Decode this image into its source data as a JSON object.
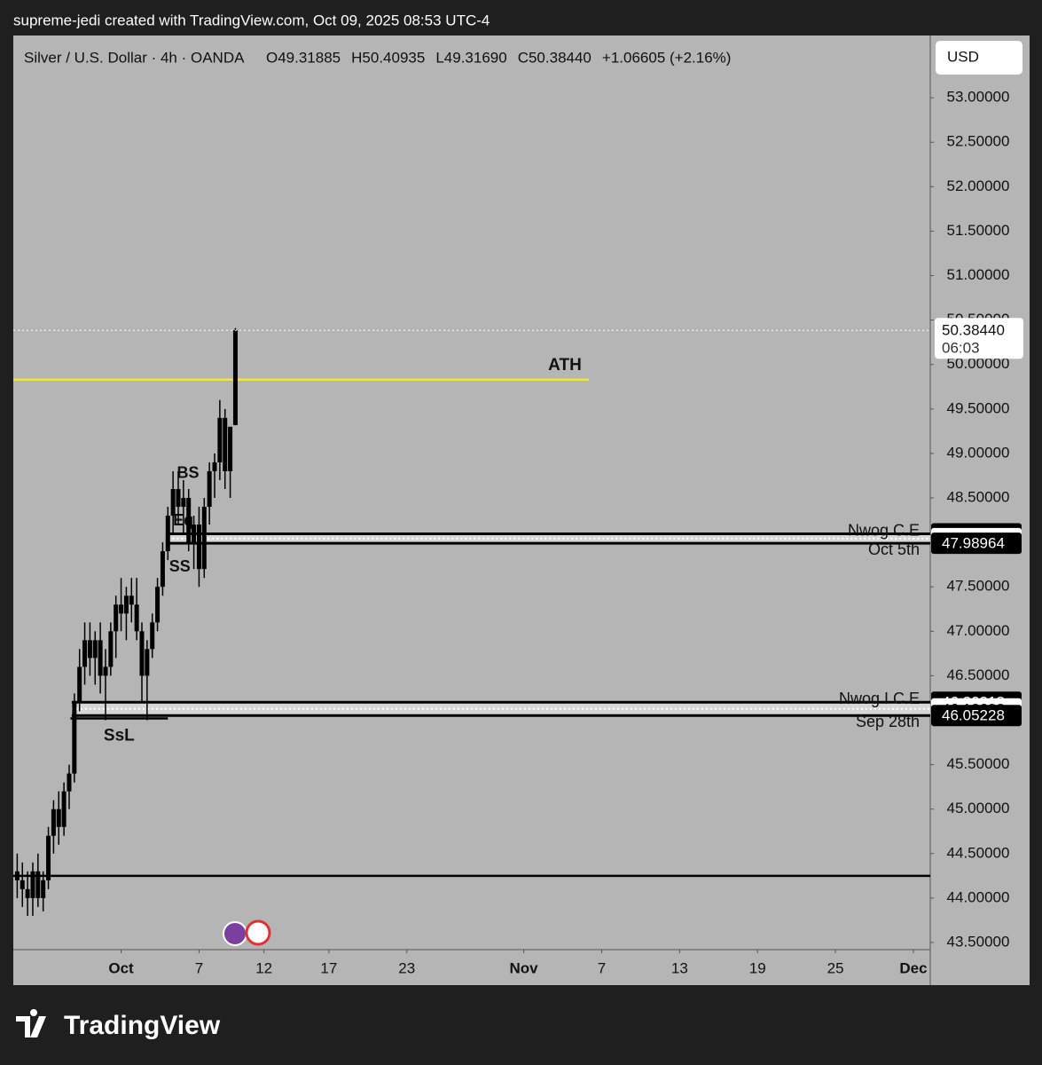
{
  "header": "supreme-jedi created with TradingView.com, Oct 09, 2025 08:53 UTC-4",
  "brand": "TradingView",
  "currency_button": "USD",
  "chart_data": {
    "type": "candlestick",
    "title": "Silver / U.S. Dollar · 4h · OANDA",
    "ohlc_legend": [
      "O49.31885",
      "H50.40935",
      "L49.31690",
      "C50.38440",
      "+1.06605 (+2.16%)"
    ],
    "color": "#000000",
    "x": [
      -8.0,
      -7.6,
      -7.2,
      -6.8,
      -6.4,
      -6.0,
      -5.6,
      -5.2,
      -4.8,
      -4.4,
      -4.0,
      -3.6,
      -3.2,
      -2.8,
      -2.4,
      -2.0,
      -1.6,
      -1.2,
      -0.8,
      -0.4,
      0.0,
      0.4,
      0.8,
      1.2,
      1.6,
      2.0,
      2.4,
      2.8,
      3.2,
      3.6,
      4.0,
      4.4,
      4.8,
      5.2,
      5.6,
      6.0,
      6.4,
      6.8,
      7.2,
      7.6,
      8.0,
      8.4,
      8.8
    ],
    "open": [
      44.3,
      44.2,
      44.1,
      44.0,
      44.3,
      44.0,
      44.2,
      44.7,
      45.0,
      44.8,
      45.2,
      45.4,
      46.2,
      46.6,
      46.9,
      46.7,
      46.9,
      46.5,
      46.6,
      47.0,
      47.3,
      47.2,
      47.4,
      47.3,
      47.0,
      46.5,
      46.8,
      47.1,
      47.5,
      47.9,
      48.3,
      48.6,
      48.4,
      48.5,
      48.0,
      48.2,
      47.7,
      48.4,
      48.8,
      48.9,
      49.4,
      48.8,
      49.31885
    ],
    "high": [
      44.5,
      44.4,
      44.3,
      44.4,
      44.5,
      44.3,
      44.8,
      45.1,
      45.2,
      45.3,
      45.5,
      46.3,
      46.8,
      47.1,
      47.1,
      47.0,
      47.1,
      46.8,
      47.1,
      47.4,
      47.6,
      47.5,
      47.6,
      47.6,
      47.1,
      46.9,
      47.2,
      47.6,
      48.0,
      48.4,
      48.8,
      48.8,
      48.7,
      48.6,
      48.3,
      48.4,
      48.5,
      48.9,
      49.0,
      49.6,
      49.5,
      49.3,
      50.40935
    ],
    "low": [
      44.0,
      43.9,
      43.8,
      43.8,
      43.9,
      43.85,
      44.1,
      44.5,
      44.6,
      44.7,
      45.0,
      45.3,
      46.1,
      46.4,
      46.5,
      46.4,
      46.3,
      46.0,
      46.5,
      46.7,
      47.0,
      46.9,
      47.1,
      46.9,
      46.2,
      46.0,
      46.7,
      47.0,
      47.4,
      47.8,
      48.1,
      48.2,
      48.1,
      47.9,
      47.7,
      47.5,
      47.6,
      48.2,
      48.5,
      48.7,
      48.6,
      48.5,
      49.3169
    ],
    "close": [
      44.2,
      44.1,
      44.0,
      44.3,
      44.0,
      44.2,
      44.7,
      45.0,
      44.8,
      45.2,
      45.4,
      46.2,
      46.6,
      46.9,
      46.7,
      46.9,
      46.5,
      46.6,
      47.0,
      47.3,
      47.2,
      47.4,
      47.3,
      47.0,
      46.5,
      46.8,
      47.1,
      47.5,
      47.9,
      48.3,
      48.6,
      48.4,
      48.5,
      48.0,
      48.2,
      47.7,
      48.4,
      48.8,
      48.9,
      49.4,
      48.8,
      49.3,
      50.3844
    ],
    "price_tag": {
      "value": 50.3844,
      "label": "50.38440",
      "countdown": "06:03"
    },
    "xlim": [
      -8.3,
      62.3
    ],
    "xticks": [
      {
        "value": 0,
        "label": "Oct"
      },
      {
        "value": 6,
        "label": "7"
      },
      {
        "value": 11,
        "label": "12"
      },
      {
        "value": 16,
        "label": "17"
      },
      {
        "value": 22,
        "label": "23"
      },
      {
        "value": 31,
        "label": "Nov"
      },
      {
        "value": 37,
        "label": "7"
      },
      {
        "value": 43,
        "label": "13"
      },
      {
        "value": 49,
        "label": "19"
      },
      {
        "value": 55,
        "label": "25"
      },
      {
        "value": 61,
        "label": "Dec"
      }
    ],
    "ylim": [
      43.42,
      53.7
    ],
    "yticks": [
      {
        "value": 53,
        "label": "53.00000"
      },
      {
        "value": 52.5,
        "label": "52.50000"
      },
      {
        "value": 52,
        "label": "52.00000"
      },
      {
        "value": 51.5,
        "label": "51.50000"
      },
      {
        "value": 51,
        "label": "51.00000"
      },
      {
        "value": 50.5,
        "label": "50.50000"
      },
      {
        "value": 50,
        "label": "50.00000"
      },
      {
        "value": 49.5,
        "label": "49.50000"
      },
      {
        "value": 49,
        "label": "49.00000"
      },
      {
        "value": 48.5,
        "label": "48.50000"
      },
      {
        "value": 48,
        "label": "48.00000"
      },
      {
        "value": 47.5,
        "label": "47.50000"
      },
      {
        "value": 47,
        "label": "47.00000"
      },
      {
        "value": 46.5,
        "label": "46.50000"
      },
      {
        "value": 46,
        "label": "46.00000"
      },
      {
        "value": 45.5,
        "label": "45.50000"
      },
      {
        "value": 45,
        "label": "45.00000"
      },
      {
        "value": 44.5,
        "label": "44.50000"
      },
      {
        "value": 44,
        "label": "44.00000"
      },
      {
        "value": 43.5,
        "label": "43.50000"
      }
    ],
    "grid": false,
    "levels": [
      {
        "label": "ATH",
        "value": 49.83,
        "x": [
          -8.3,
          36
        ],
        "color": "#f5e341"
      },
      {
        "label": "SsL",
        "value": 46.02,
        "x": [
          -3.9,
          3.6
        ],
        "color": "#000000"
      },
      {
        "value": 44.25,
        "x": [
          -8.3,
          62.3
        ],
        "color": "#000000"
      }
    ],
    "zones": [
      {
        "label": "Nwog C.E",
        "date": "Oct 5th",
        "top": 48.09544,
        "mid": 48.04239,
        "bottom": 47.98964,
        "x_start": 3.6
      },
      {
        "label": "Nwog I C.E",
        "date": "Sep 28th",
        "top": 46.20218,
        "mid": 46.12688,
        "bottom": 46.05228,
        "x_start": -3.8
      }
    ],
    "annotations": [
      {
        "text": "BS",
        "x": 4.3,
        "y": 48.77
      },
      {
        "text": "Eq",
        "x": 4.0,
        "y": 48.24
      },
      {
        "text": "SS",
        "x": 3.7,
        "y": 47.72
      }
    ]
  }
}
